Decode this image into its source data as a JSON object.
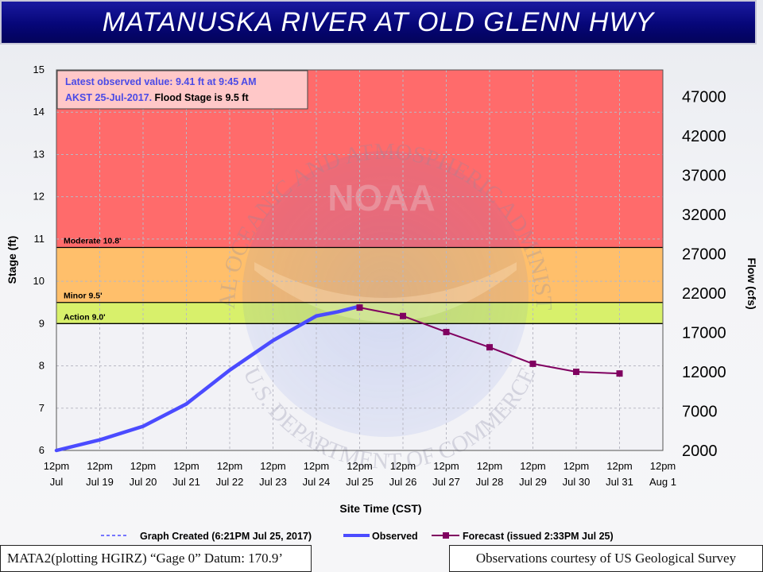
{
  "header": {
    "title": "MATANUSKA RIVER AT OLD GLENN HWY"
  },
  "info_box": {
    "latest_line1": "Latest observed value: 9.41 ft at 9:45 AM",
    "latest_line2": "AKST 25-Jul-2017.",
    "flood_stage": " Flood Stage is 9.5 ft"
  },
  "chart_data": {
    "type": "line",
    "xlabel": "Site Time (CST)",
    "ylabel": "Stage (ft)",
    "y2label": "Flow (cfs)",
    "ylim": [
      6,
      15
    ],
    "y_ticks": [
      "6",
      "7",
      "8",
      "9",
      "10",
      "11",
      "12",
      "13",
      "14",
      "15"
    ],
    "y2_ticks": [
      "2000",
      "7000",
      "12000",
      "17000",
      "22000",
      "27000",
      "32000",
      "37000",
      "42000",
      "47000"
    ],
    "x_ticks": [
      [
        "12pm",
        "Jul"
      ],
      [
        "12pm",
        "Jul 19"
      ],
      [
        "12pm",
        "Jul 20"
      ],
      [
        "12pm",
        "Jul 21"
      ],
      [
        "12pm",
        "Jul 22"
      ],
      [
        "12pm",
        "Jul 23"
      ],
      [
        "12pm",
        "Jul 24"
      ],
      [
        "12pm",
        "Jul 25"
      ],
      [
        "12pm",
        "Jul 26"
      ],
      [
        "12pm",
        "Jul 27"
      ],
      [
        "12pm",
        "Jul 28"
      ],
      [
        "12pm",
        "Jul 29"
      ],
      [
        "12pm",
        "Jul 30"
      ],
      [
        "12pm",
        "Jul 31"
      ],
      [
        "12pm",
        "Aug 1"
      ]
    ],
    "flood_categories": [
      {
        "label": "Moderate 10.8'",
        "stage": 10.8,
        "color": "#ff6b6b"
      },
      {
        "label": "Minor 9.5'",
        "stage": 9.5,
        "color": "#ffbf6b"
      },
      {
        "label": "Action 9.0'",
        "stage": 9.0,
        "color": "#d8f06b"
      }
    ],
    "flood_above_color": "#ff6b6b",
    "series": [
      {
        "name": "Observed",
        "color": "#4b4bff",
        "x_day": [
          18,
          19,
          20,
          21,
          22,
          23,
          24,
          24.5,
          25
        ],
        "values": [
          6.0,
          6.25,
          6.57,
          7.1,
          7.9,
          8.6,
          9.18,
          9.28,
          9.41
        ]
      },
      {
        "name": "Forecast (issued 2:33PM Jul 25)",
        "color": "#800060",
        "x_day": [
          25,
          26,
          27,
          28,
          29,
          30,
          31
        ],
        "values": [
          9.38,
          9.18,
          8.8,
          8.44,
          8.05,
          7.86,
          7.82
        ]
      }
    ],
    "legend": {
      "graph_created": "Graph Created (6:21PM Jul 25, 2017)",
      "observed": "Observed",
      "forecast": "Forecast (issued 2:33PM Jul 25)"
    }
  },
  "watermark": {
    "logo_text": "NOAA",
    "arc_top": "NATIONAL OCEANIC AND ATMOSPHERIC ADMINISTRATION",
    "arc_bottom": "U.S. DEPARTMENT OF COMMERCE"
  },
  "footer": {
    "datum": "MATA2(plotting HGIRZ) “Gage 0” Datum: 170.9’",
    "credit": "Observations courtesy of US Geological Survey"
  }
}
